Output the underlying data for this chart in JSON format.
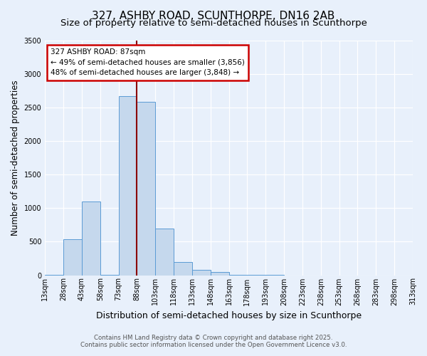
{
  "title_line1": "327, ASHBY ROAD, SCUNTHORPE, DN16 2AB",
  "title_line2": "Size of property relative to semi-detached houses in Scunthorpe",
  "xlabel": "Distribution of semi-detached houses by size in Scunthorpe",
  "ylabel": "Number of semi-detached properties",
  "bin_edges": [
    13,
    28,
    43,
    58,
    73,
    88,
    103,
    118,
    133,
    148,
    163,
    178,
    193,
    208,
    223,
    238,
    253,
    268,
    283,
    298,
    313
  ],
  "bar_values": [
    5,
    540,
    1100,
    10,
    2670,
    2580,
    690,
    200,
    80,
    50,
    5,
    3,
    1,
    0,
    0,
    0,
    0,
    0,
    0,
    0
  ],
  "tick_labels": [
    "13sqm",
    "28sqm",
    "43sqm",
    "58sqm",
    "73sqm",
    "88sqm",
    "103sqm",
    "118sqm",
    "133sqm",
    "148sqm",
    "163sqm",
    "178sqm",
    "193sqm",
    "208sqm",
    "223sqm",
    "238sqm",
    "253sqm",
    "268sqm",
    "283sqm",
    "298sqm",
    "313sqm"
  ],
  "bar_color": "#c5d8ed",
  "bar_edge_color": "#5b9bd5",
  "background_color": "#e8f0fb",
  "ylim": [
    0,
    3500
  ],
  "yticks": [
    0,
    500,
    1000,
    1500,
    2000,
    2500,
    3000,
    3500
  ],
  "vline_x": 5.0,
  "vline_color": "#8b0000",
  "annotation_title": "327 ASHBY ROAD: 87sqm",
  "annotation_line2": "← 49% of semi-detached houses are smaller (3,856)",
  "annotation_line3": "48% of semi-detached houses are larger (3,848) →",
  "annotation_box_facecolor": "#ffffff",
  "annotation_box_edgecolor": "#cc0000",
  "footnote1": "Contains HM Land Registry data © Crown copyright and database right 2025.",
  "footnote2": "Contains public sector information licensed under the Open Government Licence v3.0.",
  "title_fontsize": 11,
  "subtitle_fontsize": 9.5,
  "xlabel_fontsize": 9,
  "ylabel_fontsize": 8.5,
  "tick_fontsize": 7,
  "annotation_fontsize": 7.5,
  "footnote_fontsize": 6.2
}
